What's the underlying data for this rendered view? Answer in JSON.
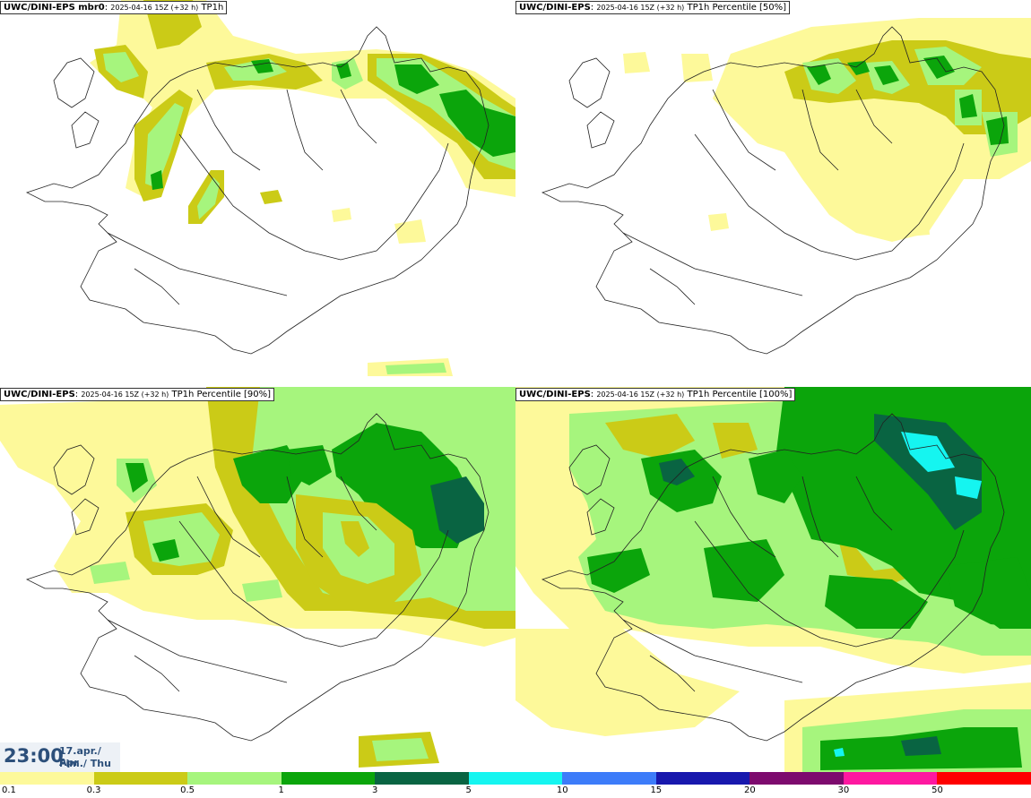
{
  "panels": [
    {
      "model": "UWC/DINI-EPS mbr0",
      "date": "2025-04-16 15Z (+32 h)",
      "product": "TP1h"
    },
    {
      "model": "UWC/DINI-EPS",
      "date": "2025-04-16 15Z (+32 h)",
      "product": "TP1h Percentile [50%]"
    },
    {
      "model": "UWC/DINI-EPS",
      "date": "2025-04-16 15Z (+32 h)",
      "product": "TP1h Percentile [90%]"
    },
    {
      "model": "UWC/DINI-EPS",
      "date": "2025-04-16 15Z (+32 h)",
      "product": "TP1h Percentile [100%]"
    }
  ],
  "valid_time": {
    "time": "23:00",
    "date_line1": "17.apr./ Apr",
    "date_line2": "Fim./ Thu"
  },
  "legend": {
    "colors": [
      "#fdf99a",
      "#cbcb17",
      "#a6f57d",
      "#0ba50b",
      "#096442",
      "#15f5f0",
      "#3d7cf9",
      "#1818ad",
      "#7d0a6e",
      "#fe18a0",
      "#ff0000"
    ],
    "ticks": [
      "0.1",
      "0.3",
      "0.5",
      "1",
      "3",
      "5",
      "10",
      "15",
      "20",
      "30",
      "50"
    ]
  },
  "icons": {
    "colorbar": "precipitation-colorbar"
  }
}
